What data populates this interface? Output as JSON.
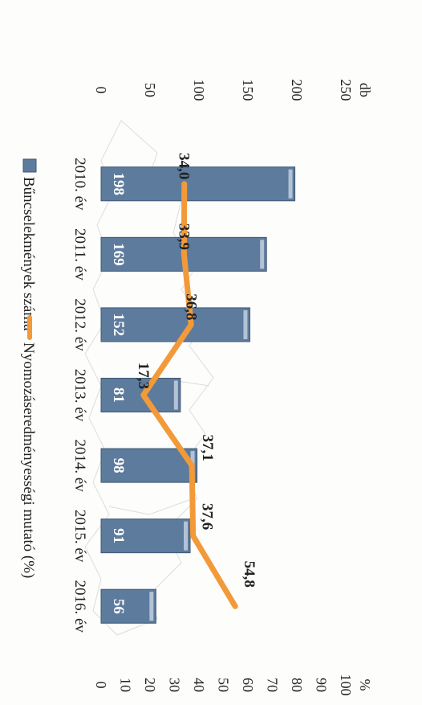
{
  "chart_data": {
    "type": "bar+line",
    "categories": [
      "2010. év",
      "2011. év",
      "2012. év",
      "2013. év",
      "2014. év",
      "2015. év",
      "2016. év"
    ],
    "series": [
      {
        "name": "Bűncselekmények száma",
        "kind": "bar",
        "axis": "left",
        "color": "#5d7b9d",
        "values": [
          198,
          169,
          152,
          81,
          98,
          91,
          56
        ],
        "labels": [
          "198",
          "169",
          "152",
          "81",
          "98",
          "91",
          "56"
        ]
      },
      {
        "name": "Nyomozáseredményességi mutató (%)",
        "kind": "line",
        "axis": "right",
        "color": "#f29a3a",
        "values": [
          34.0,
          33.9,
          36.8,
          17.3,
          37.1,
          37.6,
          54.8
        ],
        "labels": [
          "34,0",
          "33,9",
          "36,8",
          "17,3",
          "37,1",
          "37,6",
          "54,8"
        ]
      }
    ],
    "left_axis": {
      "unit": "db",
      "ylim": [
        0,
        250
      ],
      "ticks": [
        "0",
        "50",
        "100",
        "150",
        "200",
        "250"
      ]
    },
    "right_axis": {
      "unit": "%",
      "ylim": [
        0,
        100
      ],
      "ticks": [
        "0",
        "10",
        "20",
        "30",
        "40",
        "50",
        "60",
        "70",
        "80",
        "90",
        "100"
      ]
    },
    "legend_position": "top",
    "grid": false,
    "orientation": "rotated 90° clockwise"
  }
}
